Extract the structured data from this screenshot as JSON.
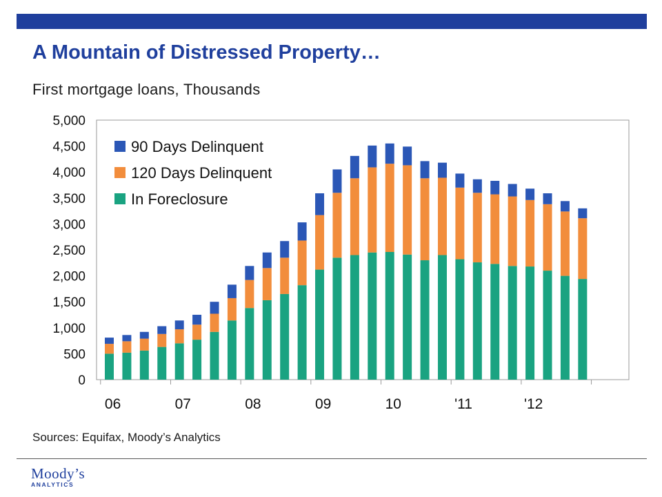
{
  "header": {
    "title": "A Mountain of Distressed Property…",
    "subtitle": "First mortgage loans, Thousands"
  },
  "footer": {
    "sources": "Sources: Equifax, Moody’s Analytics",
    "logo_main": "Moody’s",
    "logo_sub": "ANALYTICS"
  },
  "colors": {
    "brand_blue": "#1f3f9d",
    "series_90": "#2b57b6",
    "series_120": "#f28d3c",
    "series_fc": "#1aa381"
  },
  "chart_data": {
    "type": "bar",
    "stacked": true,
    "title": "",
    "xlabel": "",
    "ylabel": "",
    "ylim": [
      0,
      5000
    ],
    "yticks": [
      "0",
      "500",
      "1,000",
      "1,500",
      "2,000",
      "2,500",
      "3,000",
      "3,500",
      "4,000",
      "4,500",
      "5,000"
    ],
    "ytick_values": [
      0,
      500,
      1000,
      1500,
      2000,
      2500,
      3000,
      3500,
      4000,
      4500,
      5000
    ],
    "x_tick_labels": [
      {
        "label": "06",
        "index": 0
      },
      {
        "label": "07",
        "index": 4
      },
      {
        "label": "08",
        "index": 8
      },
      {
        "label": "09",
        "index": 12
      },
      {
        "label": "10",
        "index": 16
      },
      {
        "label": "'11",
        "index": 20
      },
      {
        "label": "'12",
        "index": 24
      }
    ],
    "categories": [
      "Q1 06",
      "Q2 06",
      "Q3 06",
      "Q4 06",
      "Q1 07",
      "Q2 07",
      "Q3 07",
      "Q4 07",
      "Q1 08",
      "Q2 08",
      "Q3 08",
      "Q4 08",
      "Q1 09",
      "Q2 09",
      "Q3 09",
      "Q4 09",
      "Q1 10",
      "Q2 10",
      "Q3 10",
      "Q4 10",
      "Q1 11",
      "Q2 11",
      "Q3 11",
      "Q4 11",
      "Q1 12",
      "Q2 12",
      "Q3 12",
      "Q4 12"
    ],
    "series": [
      {
        "name": "In Foreclosure",
        "values": [
          500,
          520,
          560,
          630,
          700,
          770,
          920,
          1140,
          1380,
          1530,
          1650,
          1820,
          2120,
          2350,
          2400,
          2450,
          2460,
          2410,
          2300,
          2400,
          2320,
          2260,
          2230,
          2190,
          2180,
          2100,
          2000,
          1940
        ]
      },
      {
        "name": "120 Days Delinquent",
        "values": [
          190,
          220,
          230,
          250,
          270,
          290,
          350,
          430,
          540,
          620,
          700,
          860,
          1050,
          1250,
          1480,
          1640,
          1700,
          1720,
          1580,
          1490,
          1380,
          1340,
          1340,
          1340,
          1280,
          1280,
          1240,
          1170
        ]
      },
      {
        "name": "90 Days Delinquent",
        "values": [
          120,
          120,
          130,
          150,
          170,
          190,
          230,
          260,
          270,
          300,
          320,
          350,
          420,
          450,
          430,
          420,
          390,
          360,
          330,
          290,
          270,
          260,
          260,
          240,
          220,
          210,
          200,
          190
        ]
      }
    ],
    "legend_order": [
      "90 Days Delinquent",
      "120 Days Delinquent",
      "In Foreclosure"
    ],
    "legend_position": "top-left inside",
    "grid": false
  }
}
